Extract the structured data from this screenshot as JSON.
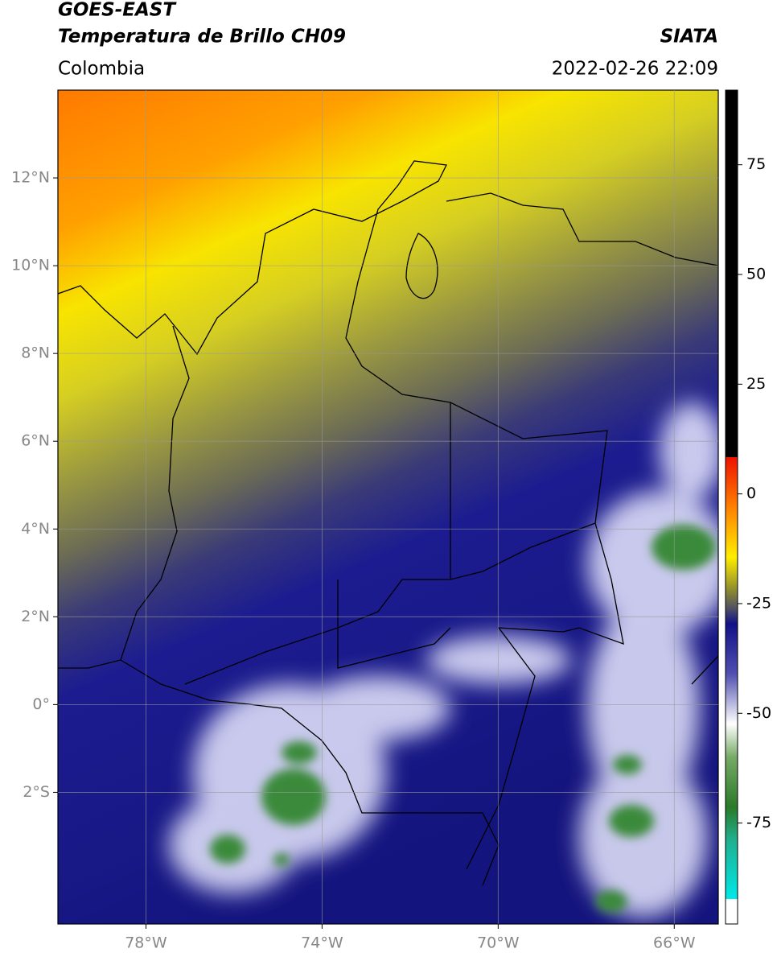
{
  "map": {
    "title": "GOES-EAST",
    "subtitle": "Temperatura de Brillo CH09",
    "source": "SIATA",
    "region": "Colombia",
    "timestamp": "2022-02-26 22:09",
    "xlim": [
      -80,
      -65
    ],
    "ylim": [
      -5,
      14
    ],
    "xticks": [
      {
        "value": -78,
        "label": "78°W"
      },
      {
        "value": -74,
        "label": "74°W"
      },
      {
        "value": -70,
        "label": "70°W"
      },
      {
        "value": -66,
        "label": "66°W"
      }
    ],
    "yticks": [
      {
        "value": 12,
        "label": "12°N"
      },
      {
        "value": 10,
        "label": "10°N"
      },
      {
        "value": 8,
        "label": "8°N"
      },
      {
        "value": 6,
        "label": "6°N"
      },
      {
        "value": 4,
        "label": "4°N"
      },
      {
        "value": 2,
        "label": "2°N"
      },
      {
        "value": 0,
        "label": "0°"
      },
      {
        "value": -2,
        "label": "2°S"
      }
    ],
    "grid": true,
    "colorbar": {
      "lim": [
        -98,
        92
      ],
      "ticks": [
        75,
        50,
        25,
        0,
        -25,
        -50,
        -75
      ]
    }
  }
}
